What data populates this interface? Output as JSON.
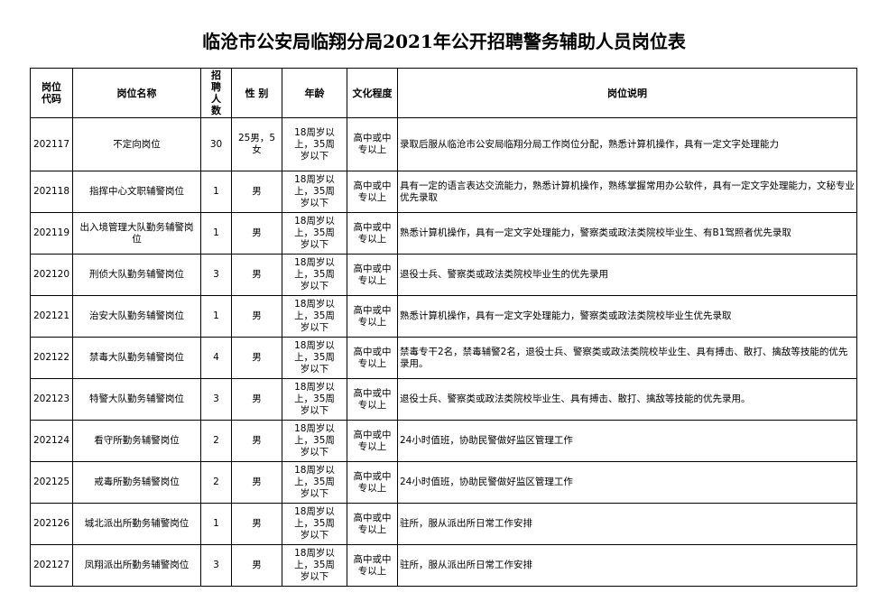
{
  "header": {
    "title": "临沧市公安局临翔分局2021年公开招聘警务辅助人员岗位表"
  },
  "table": {
    "columns": [
      "岗位代码",
      "岗位名称",
      "招聘人数",
      "性 别",
      "年龄",
      "文化程度",
      "岗位说明"
    ],
    "rows": [
      [
        "202117",
        "不定向岗位",
        "30",
        "25男，5女",
        "18周岁以上，35周岁以下",
        "高中或中专以上",
        "录取后服从临沧市公安局临翔分局工作岗位分配，熟悉计算机操作，具有一定文字处理能力"
      ],
      [
        "202118",
        "指挥中心文职辅警岗位",
        "1",
        "男",
        "18周岁以上，35周岁以下",
        "高中或中专以上",
        "具有一定的语言表达交流能力，熟悉计算机操作，熟练掌握常用办公软件，具有一定文字处理能力，文秘专业优先录取"
      ],
      [
        "202119",
        "出入境管理大队勤务辅警岗位",
        "1",
        "男",
        "18周岁以上，35周岁以下",
        "高中或中专以上",
        "熟悉计算机操作，具有一定文字处理能力，警察类或政法类院校毕业生、有B1驾照者优先录取"
      ],
      [
        "202120",
        "刑侦大队勤务辅警岗位",
        "3",
        "男",
        "18周岁以上，35周岁以下",
        "高中或中专以上",
        "退役士兵、警察类或政法类院校毕业生的优先录用"
      ],
      [
        "202121",
        "治安大队勤务辅警岗位",
        "1",
        "男",
        "18周岁以上，35周岁以下",
        "高中或中专以上",
        "熟悉计算机操作，具有一定文字处理能力，警察类或政法类院校毕业生优先录取"
      ],
      [
        "202122",
        "禁毒大队勤务辅警岗位",
        "4",
        "男",
        "18周岁以上，35周岁以下",
        "高中或中专以上",
        "禁毒专干2名，禁毒辅警2名，退役士兵、警察类或政法类院校毕业生、具有搏击、散打、擒敌等技能的优先录用。"
      ],
      [
        "202123",
        "特警大队勤务辅警岗位",
        "3",
        "男",
        "18周岁以上，35周岁以下",
        "高中或中专以上",
        "退役士兵、警察类或政法类院校毕业生、具有搏击、散打、擒敌等技能的优先录用。"
      ],
      [
        "202124",
        "看守所勤务辅警岗位",
        "2",
        "男",
        "18周岁以上，35周岁以下",
        "高中或中专以上",
        "24小时值班，协助民警做好监区管理工作"
      ],
      [
        "202125",
        "戒毒所勤务辅警岗位",
        "2",
        "男",
        "18周岁以上，35周岁以下",
        "高中或中专以上",
        "24小时值班，协助民警做好监区管理工作"
      ],
      [
        "202126",
        "城北派出所勤务辅警岗位",
        "1",
        "男",
        "18周岁以上，35周岁以下",
        "高中或中专以上",
        "驻所，服从派出所日常工作安排"
      ],
      [
        "202127",
        "凤翔派出所勤务辅警岗位",
        "3",
        "男",
        "18周岁以上，35周岁以下",
        "高中或中专以上",
        "驻所，服从派出所日常工作安排"
      ]
    ]
  }
}
